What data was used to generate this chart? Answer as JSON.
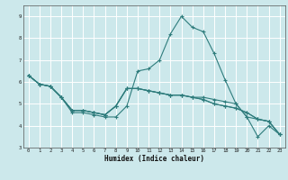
{
  "xlabel": "Humidex (Indice chaleur)",
  "xlim": [
    -0.5,
    23.5
  ],
  "ylim": [
    3,
    9.5
  ],
  "yticks": [
    3,
    4,
    5,
    6,
    7,
    8,
    9
  ],
  "xticks": [
    0,
    1,
    2,
    3,
    4,
    5,
    6,
    7,
    8,
    9,
    10,
    11,
    12,
    13,
    14,
    15,
    16,
    17,
    18,
    19,
    20,
    21,
    22,
    23
  ],
  "bg_color": "#cce8eb",
  "grid_color": "#ffffff",
  "line_color": "#2e7c7c",
  "lines": [
    [
      6.3,
      5.9,
      5.8,
      5.3,
      4.6,
      4.6,
      4.5,
      4.4,
      4.4,
      4.9,
      6.5,
      6.6,
      7.0,
      8.2,
      9.0,
      8.5,
      8.3,
      7.3,
      6.1,
      5.0,
      4.4,
      3.5,
      4.0,
      3.6
    ],
    [
      6.3,
      5.9,
      5.8,
      5.3,
      4.7,
      4.7,
      4.6,
      4.5,
      4.9,
      5.7,
      5.7,
      5.6,
      5.5,
      5.4,
      5.4,
      5.3,
      5.3,
      5.2,
      5.1,
      5.0,
      4.4,
      4.3,
      4.2,
      3.6
    ],
    [
      6.3,
      5.9,
      5.8,
      5.3,
      4.7,
      4.7,
      4.6,
      4.5,
      4.9,
      5.7,
      5.7,
      5.6,
      5.5,
      5.4,
      5.4,
      5.3,
      5.2,
      5.0,
      4.9,
      4.8,
      4.6,
      4.3,
      4.2,
      3.6
    ],
    [
      6.3,
      5.9,
      5.8,
      5.3,
      4.7,
      4.7,
      4.6,
      4.5,
      4.9,
      5.7,
      5.7,
      5.6,
      5.5,
      5.4,
      5.4,
      5.3,
      5.2,
      5.0,
      4.9,
      4.8,
      4.6,
      4.3,
      4.2,
      3.6
    ]
  ]
}
